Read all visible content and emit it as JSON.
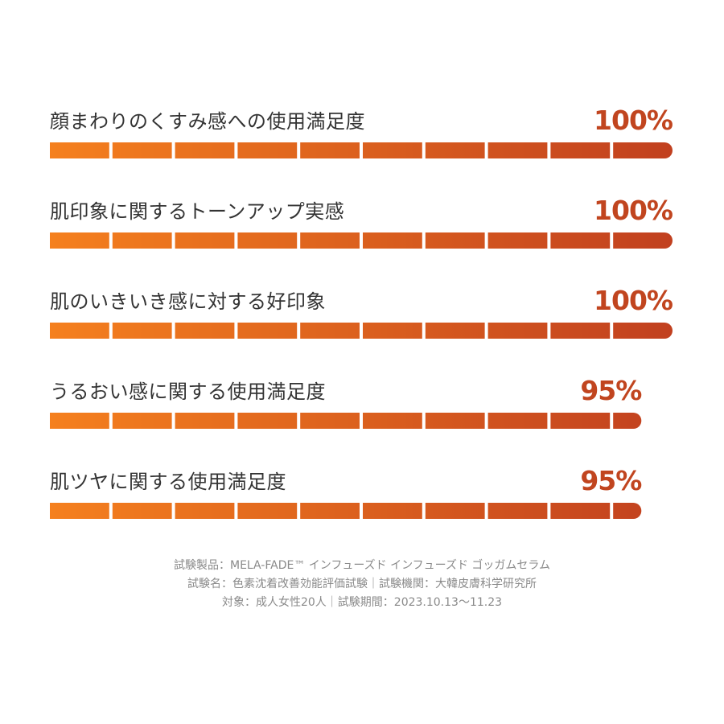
{
  "chart_data": {
    "type": "bar",
    "orientation": "horizontal",
    "categories": [
      "顔まわりのくすみ感への使用満足度",
      "肌印象に関するトーンアップ実感",
      "肌のいきいき感に対する好印象",
      "うるおい感に関する使用満足度",
      "肌ツヤに関する使用満足度"
    ],
    "values": [
      100,
      100,
      100,
      95,
      95
    ],
    "value_labels": [
      "100%",
      "100%",
      "100%",
      "95%",
      "95%"
    ],
    "unit": "%",
    "xlim": [
      0,
      100
    ],
    "segments_per_bar": 10,
    "grid": false,
    "colors": {
      "gradient_start": "#f5801e",
      "gradient_end": "#c1401f",
      "value_text": "#c1451f",
      "label_text": "#333333"
    }
  },
  "footnote": {
    "line1": "試験製品：MELA-FADE™ インフューズド インフューズド ゴッガムセラム",
    "line2": "試験名：色素沈着改善効能評価試験｜試験機関：大韓皮膚科学研究所",
    "line3": "対象：成人女性20人｜試験期間：2023.10.13〜11.23"
  }
}
